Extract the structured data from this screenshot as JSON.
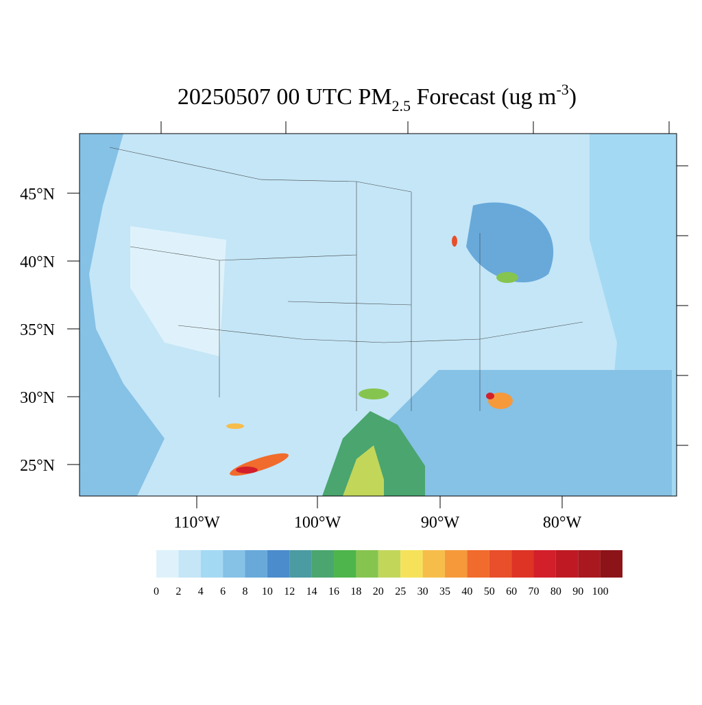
{
  "title": {
    "main": "20250507 00 UTC PM",
    "sub": "2.5",
    "middle": " Forecast (ug m",
    "sup": "-3",
    "end": ")"
  },
  "lat_labels": [
    "45°N",
    "40°N",
    "35°N",
    "30°N",
    "25°N"
  ],
  "lon_labels": [
    "110°W",
    "100°W",
    "90°W",
    "80°W"
  ],
  "colorbar": {
    "levels": [
      0,
      2,
      4,
      6,
      8,
      10,
      12,
      14,
      16,
      18,
      20,
      25,
      30,
      35,
      40,
      50,
      60,
      70,
      80,
      90,
      100
    ],
    "colors": [
      "#dff2fb",
      "#c4e6f7",
      "#a4d9f3",
      "#86c1e6",
      "#68a9da",
      "#4b8ccc",
      "#4a9ba2",
      "#4aa56f",
      "#4db54b",
      "#86c450",
      "#c2d65a",
      "#f5e25a",
      "#f7bd4b",
      "#f5993b",
      "#f16b2c",
      "#e84f2a",
      "#de3426",
      "#d21f2a",
      "#bf1a23",
      "#a9181f",
      "#8c1418"
    ]
  }
}
